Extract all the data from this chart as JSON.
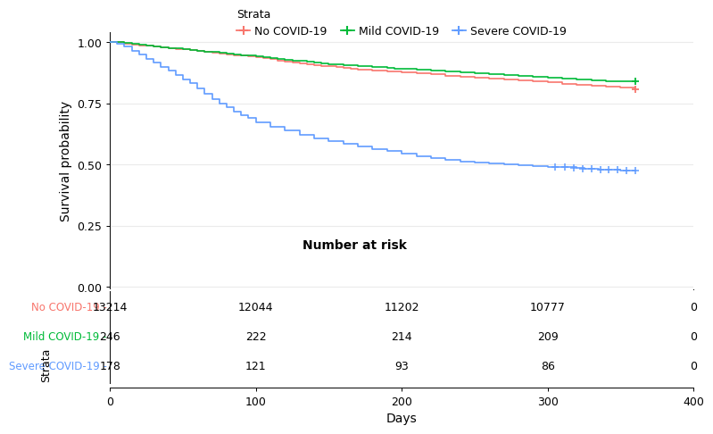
{
  "legend_title": "Strata",
  "legend_entries": [
    "No COVID-19",
    "Mild COVID-19",
    "Severe COVID-19"
  ],
  "legend_colors": [
    "#F8766D",
    "#00BA38",
    "#619CFF"
  ],
  "ylabel": "Survival probability",
  "xlabel": "Days",
  "xlim": [
    0,
    400
  ],
  "ylim": [
    -0.01,
    1.04
  ],
  "yticks": [
    0.0,
    0.25,
    0.5,
    0.75,
    1.0
  ],
  "xticks": [
    0,
    100,
    200,
    300,
    400
  ],
  "risk_title": "Number at risk",
  "risk_rows": [
    "No COVID-19",
    "Mild COVID-19",
    "Severe COVID-19"
  ],
  "risk_row_colors": [
    "#F8766D",
    "#00BA38",
    "#619CFF"
  ],
  "risk_x_positions": [
    0,
    100,
    200,
    300,
    400
  ],
  "risk_data": [
    [
      13214,
      12044,
      11202,
      10777,
      0
    ],
    [
      246,
      222,
      214,
      209,
      0
    ],
    [
      178,
      121,
      93,
      86,
      0
    ]
  ],
  "no_covid_x": [
    0,
    5,
    10,
    15,
    20,
    25,
    30,
    35,
    40,
    45,
    50,
    55,
    60,
    65,
    70,
    75,
    80,
    85,
    90,
    95,
    100,
    105,
    110,
    115,
    120,
    125,
    130,
    135,
    140,
    145,
    150,
    155,
    160,
    165,
    170,
    175,
    180,
    185,
    190,
    195,
    200,
    210,
    220,
    230,
    240,
    250,
    260,
    270,
    280,
    290,
    300,
    310,
    320,
    330,
    340,
    350,
    360
  ],
  "no_covid_y": [
    1.0,
    1.0,
    0.995,
    0.99,
    0.988,
    0.985,
    0.982,
    0.979,
    0.976,
    0.973,
    0.97,
    0.967,
    0.963,
    0.96,
    0.957,
    0.954,
    0.951,
    0.948,
    0.945,
    0.942,
    0.938,
    0.934,
    0.93,
    0.926,
    0.922,
    0.918,
    0.914,
    0.91,
    0.907,
    0.904,
    0.901,
    0.898,
    0.895,
    0.892,
    0.889,
    0.887,
    0.885,
    0.883,
    0.881,
    0.879,
    0.876,
    0.872,
    0.868,
    0.864,
    0.86,
    0.856,
    0.852,
    0.848,
    0.843,
    0.839,
    0.835,
    0.831,
    0.826,
    0.822,
    0.818,
    0.814,
    0.808
  ],
  "mild_covid_x": [
    0,
    5,
    10,
    15,
    20,
    25,
    30,
    35,
    40,
    45,
    50,
    55,
    60,
    65,
    70,
    75,
    80,
    85,
    90,
    95,
    100,
    105,
    110,
    115,
    120,
    125,
    130,
    135,
    140,
    145,
    150,
    155,
    160,
    165,
    170,
    175,
    180,
    185,
    190,
    195,
    200,
    210,
    220,
    230,
    240,
    250,
    260,
    270,
    280,
    290,
    300,
    310,
    320,
    330,
    340,
    350,
    360
  ],
  "mild_covid_y": [
    1.0,
    1.0,
    0.996,
    0.993,
    0.99,
    0.987,
    0.983,
    0.98,
    0.977,
    0.974,
    0.971,
    0.968,
    0.965,
    0.962,
    0.96,
    0.957,
    0.954,
    0.951,
    0.948,
    0.945,
    0.942,
    0.939,
    0.936,
    0.932,
    0.929,
    0.926,
    0.923,
    0.92,
    0.917,
    0.914,
    0.911,
    0.909,
    0.907,
    0.905,
    0.903,
    0.901,
    0.899,
    0.897,
    0.895,
    0.893,
    0.891,
    0.888,
    0.885,
    0.882,
    0.878,
    0.874,
    0.87,
    0.866,
    0.862,
    0.858,
    0.854,
    0.85,
    0.846,
    0.844,
    0.842,
    0.841,
    0.84
  ],
  "severe_covid_x": [
    0,
    5,
    10,
    15,
    20,
    25,
    30,
    35,
    40,
    45,
    50,
    55,
    60,
    65,
    70,
    75,
    80,
    85,
    90,
    95,
    100,
    110,
    120,
    130,
    140,
    150,
    160,
    170,
    180,
    190,
    200,
    210,
    220,
    230,
    240,
    250,
    260,
    270,
    280,
    290,
    300,
    310,
    320,
    325,
    330,
    335,
    340,
    345,
    350,
    355,
    360
  ],
  "severe_covid_y": [
    1.0,
    0.994,
    0.983,
    0.966,
    0.95,
    0.933,
    0.916,
    0.9,
    0.883,
    0.866,
    0.849,
    0.832,
    0.81,
    0.789,
    0.768,
    0.75,
    0.733,
    0.717,
    0.703,
    0.69,
    0.672,
    0.655,
    0.638,
    0.622,
    0.608,
    0.596,
    0.583,
    0.572,
    0.563,
    0.554,
    0.546,
    0.535,
    0.525,
    0.518,
    0.512,
    0.507,
    0.503,
    0.5,
    0.497,
    0.494,
    0.491,
    0.488,
    0.485,
    0.483,
    0.481,
    0.479,
    0.478,
    0.477,
    0.476,
    0.475,
    0.474
  ],
  "censor_x": [
    305,
    312,
    318,
    324,
    330,
    336,
    342,
    348,
    354,
    360
  ],
  "censor_y": [
    0.49,
    0.488,
    0.486,
    0.484,
    0.481,
    0.479,
    0.478,
    0.477,
    0.475,
    0.474
  ],
  "background_color": "#FFFFFF",
  "grid_color": "#EBEBEB"
}
